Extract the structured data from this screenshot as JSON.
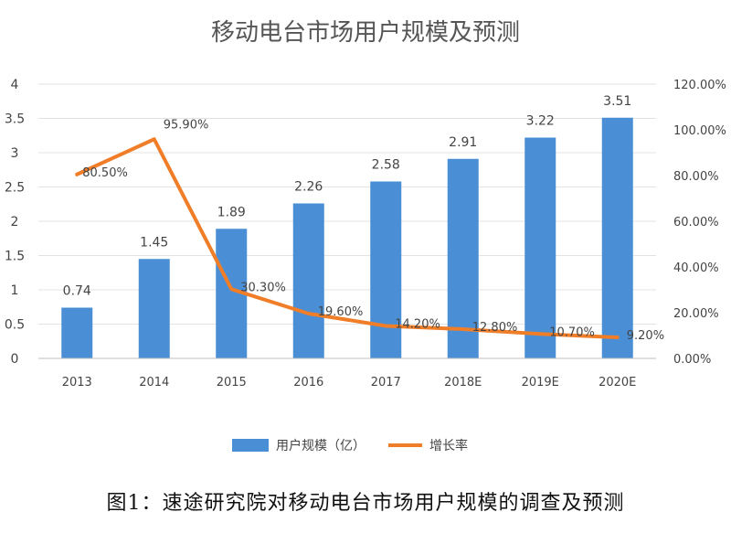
{
  "chart_data": {
    "type": "bar",
    "title": "移动电台市场用户规模及预测",
    "categories": [
      "2013",
      "2014",
      "2015",
      "2016",
      "2017",
      "2018E",
      "2019E",
      "2020E"
    ],
    "series": [
      {
        "name": "用户规模（亿）",
        "type": "bar",
        "axis": "left",
        "values": [
          0.74,
          1.45,
          1.89,
          2.26,
          2.58,
          2.91,
          3.22,
          3.51
        ],
        "labels": [
          "0.74",
          "1.45",
          "1.89",
          "2.26",
          "2.58",
          "2.91",
          "3.22",
          "3.51"
        ],
        "color": "#4a8fd6"
      },
      {
        "name": "增长率",
        "type": "line",
        "axis": "right",
        "values": [
          80.5,
          95.9,
          30.3,
          19.6,
          14.2,
          12.8,
          10.7,
          9.2
        ],
        "labels": [
          "80.50%",
          "95.90%",
          "30.30%",
          "19.60%",
          "14.20%",
          "12.80%",
          "10.70%",
          "9.20%"
        ],
        "color": "#f07d28"
      }
    ],
    "y_left": {
      "ylim": [
        0,
        4
      ],
      "ticks": [
        0,
        0.5,
        1,
        1.5,
        2,
        2.5,
        3,
        3.5,
        4
      ],
      "tick_labels": [
        "0",
        "0.5",
        "1",
        "1.5",
        "2",
        "2.5",
        "3",
        "3.5",
        "4"
      ]
    },
    "y_right": {
      "ylim": [
        0,
        120
      ],
      "ticks": [
        0,
        20,
        40,
        60,
        80,
        100,
        120
      ],
      "tick_labels": [
        "0.00%",
        "20.00%",
        "40.00%",
        "60.00%",
        "80.00%",
        "100.00%",
        "120.00%"
      ]
    },
    "grid": true,
    "legend_position": "bottom",
    "xlabel": "",
    "ylabel": ""
  },
  "caption": "图1：速途研究院对移动电台市场用户规模的调查及预测",
  "colors": {
    "gridline": "#e3e3e3",
    "text": "#444444"
  }
}
